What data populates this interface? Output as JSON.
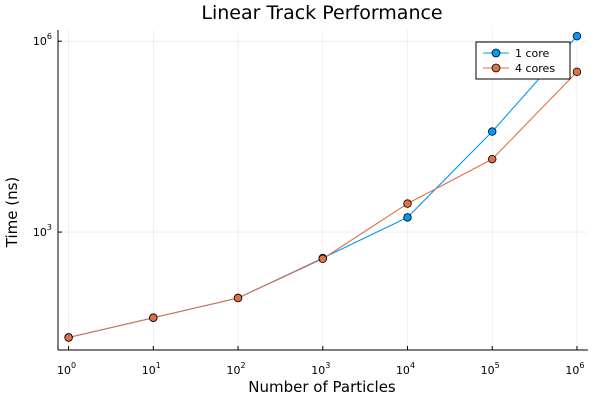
{
  "chart_data": {
    "type": "line",
    "title": "Linear Track Performance",
    "xlabel": "Number of Particles",
    "ylabel": "Time (ns)",
    "x_scale": "log10",
    "y_scale": "log10",
    "x": [
      1,
      10,
      100,
      1000,
      10000,
      100000,
      1000000
    ],
    "xlim": [
      0.75,
      1350000
    ],
    "ylim": [
      14,
      1500000
    ],
    "x_ticks": [
      1,
      10,
      100,
      1000,
      10000,
      100000,
      1000000
    ],
    "y_ticks": [
      1000,
      1000000
    ],
    "grid": true,
    "legend_position": "top-right",
    "series": [
      {
        "name": "1 core",
        "color": "#009AFA",
        "values": [
          22,
          45,
          92,
          390,
          1700,
          38000,
          1200000
        ]
      },
      {
        "name": "4 cores",
        "color": "#E36F47",
        "values": [
          22,
          45,
          92,
          380,
          2800,
          14000,
          330000
        ]
      }
    ]
  }
}
